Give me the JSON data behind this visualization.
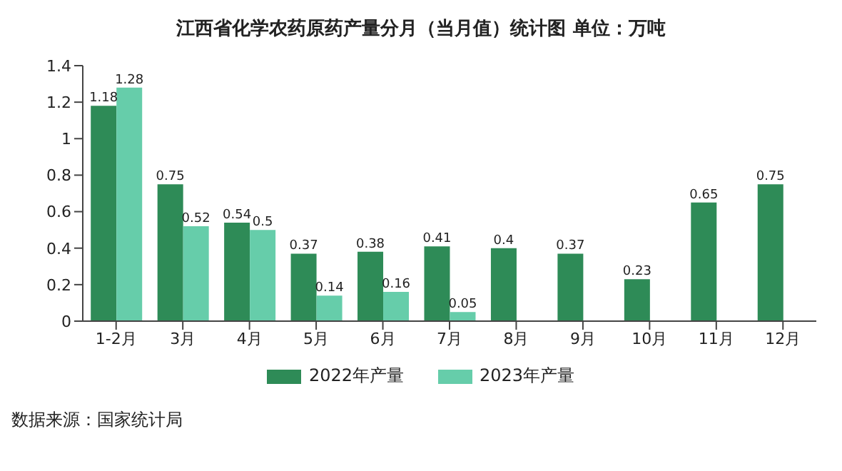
{
  "chart_data": {
    "type": "bar",
    "title": "江西省化学农药原药产量分月（当月值）统计图  单位：万吨",
    "categories": [
      "1-2月",
      "3月",
      "4月",
      "5月",
      "6月",
      "7月",
      "8月",
      "9月",
      "10月",
      "11月",
      "12月"
    ],
    "series": [
      {
        "name": "2022年产量",
        "color": "#2e8b57",
        "values": [
          1.18,
          0.75,
          0.54,
          0.37,
          0.38,
          0.41,
          0.4,
          0.37,
          0.23,
          0.65,
          0.75
        ]
      },
      {
        "name": "2023年产量",
        "color": "#66cdaa",
        "values": [
          1.28,
          0.52,
          0.5,
          0.14,
          0.16,
          0.05,
          null,
          null,
          null,
          null,
          null
        ]
      }
    ],
    "ylim": [
      0,
      1.4
    ],
    "yticks": [
      0,
      0.2,
      0.4,
      0.6,
      0.8,
      1,
      1.2,
      1.4
    ],
    "data_labels": true,
    "legend": "bottom",
    "annotations": [
      "数据来源：国家统计局"
    ]
  }
}
